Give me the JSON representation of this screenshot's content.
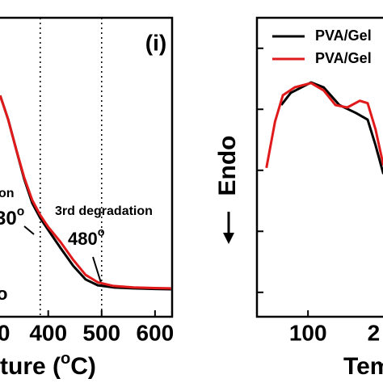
{
  "chart_data": [
    {
      "type": "line",
      "title": "(i)",
      "x_label": {
        "text": "ture (",
        "sup": "o",
        "end": "C)"
      },
      "x": [
        310,
        325,
        340,
        355,
        370,
        385,
        400,
        423,
        447,
        470,
        493,
        522,
        560,
        600,
        630
      ],
      "series": [
        {
          "name": "black",
          "color": "#000000",
          "values": [
            74,
            66,
            56,
            46,
            38,
            33,
            29,
            23,
            17,
            12.5,
            10.5,
            9.8,
            9.5,
            9.3,
            9.2
          ]
        },
        {
          "name": "red",
          "color": "#e0191b",
          "values": [
            74,
            66,
            56,
            46.5,
            39,
            34,
            30,
            25,
            19,
            14,
            11.5,
            10.3,
            9.8,
            9.6,
            9.5
          ]
        }
      ],
      "xlim": [
        290,
        632
      ],
      "xticks": [
        {
          "value": 300,
          "label": "0"
        },
        400,
        500,
        600
      ],
      "ylim": [
        0,
        100
      ],
      "vlines": [
        385,
        500
      ],
      "annotations": [
        {
          "text": "on"
        },
        {
          "text": "30",
          "sup": "o"
        },
        {
          "text": "3rd degradation"
        },
        {
          "text": "480",
          "sup": "o"
        },
        {
          "text": "o"
        }
      ]
    },
    {
      "type": "line",
      "x_label": "Tem",
      "y_label": "Endo",
      "series": [
        {
          "name": "PVA/Gel",
          "color": "#000000",
          "x": [
            66,
            78,
            104,
            120,
            140,
            161,
            176,
            186,
            196
          ],
          "values": [
            4.07,
            4.27,
            4.44,
            4.36,
            4.07,
            3.94,
            3.83,
            3.41,
            2.94
          ]
        },
        {
          "name": "PVA/Gel",
          "color": "#e0191b",
          "x": [
            47,
            58,
            68,
            83,
            104,
            120,
            135,
            150,
            166,
            176,
            186,
            196
          ],
          "values": [
            3.04,
            3.8,
            4.23,
            4.36,
            4.43,
            4.31,
            4.07,
            4.03,
            4.14,
            4.1,
            3.67,
            3.08
          ]
        }
      ],
      "xlim": [
        35,
        284
      ],
      "xticks": [
        100,
        {
          "value": 200,
          "label": "2"
        }
      ],
      "ylim": [
        0.6,
        5.5
      ],
      "yticks": [
        1,
        2,
        3,
        4,
        5
      ]
    }
  ]
}
